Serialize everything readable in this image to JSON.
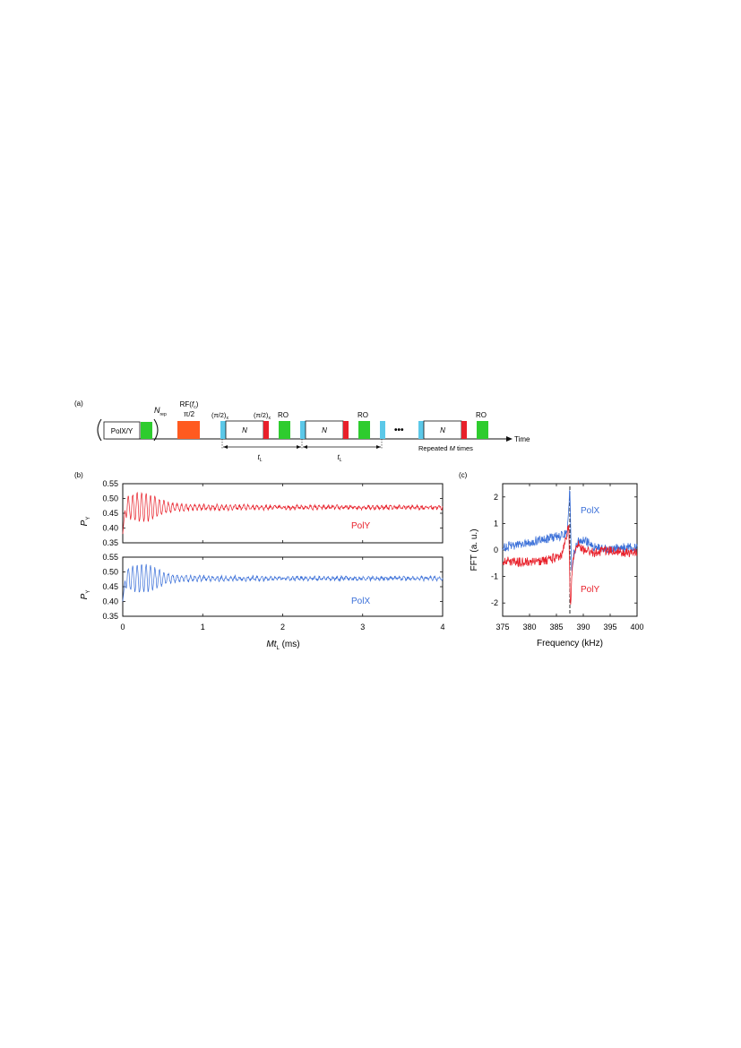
{
  "panel_a": {
    "label": "(a)",
    "pol_box_text": "PolX/Y",
    "nrep_main": "N",
    "nrep_sub": "rep",
    "rf_label_prefix": "RF(",
    "rf_label_f": "f",
    "rf_label_sub": "c",
    "rf_label_suffix": ")",
    "rf_angle": "π/2",
    "pulse_x": "(π/2)",
    "pulse_x_sub": "x",
    "pulse_y": "(π/2)",
    "pulse_y_sub": "x",
    "ro_label": "RO",
    "n_box": "N",
    "tl_main": "t",
    "tl_sub": "L",
    "dots": "•••",
    "repeated_label_pre": "Repeated ",
    "repeated_label_m": "M",
    "repeated_label_post": " times",
    "time_label": "Time",
    "colors": {
      "pol_green": "#2ecc2e",
      "rf_orange": "#ff5a1f",
      "pulse_cyan": "#5bc8e8",
      "pulse_red": "#e8202a",
      "ro_green": "#2ecc2e"
    }
  },
  "panel_b": {
    "label": "(b)",
    "ylabel_main": "P",
    "ylabel_sub": "Y",
    "xlabel_main": "Mt",
    "xlabel_sub": "L",
    "xlabel_unit": " (ms)",
    "yticks": [
      "0.55",
      "0.50",
      "0.45",
      "0.40",
      "0.35"
    ],
    "xticks": [
      "0",
      "1",
      "2",
      "3",
      "4"
    ],
    "top_legend": "PolY",
    "bottom_legend": "PolX"
  },
  "panel_c": {
    "label": "(c)",
    "ylabel": "FFT (a. u.)",
    "xlabel": "Frequency (kHz)",
    "yticks": [
      "2",
      "1",
      "0",
      "-1",
      "-2"
    ],
    "xticks": [
      "375",
      "380",
      "385",
      "390",
      "395",
      "400"
    ],
    "legend_x": "PolX",
    "legend_y": "PolY"
  },
  "chart_data": [
    {
      "type": "line",
      "title": "",
      "xlabel": "Mt_L (ms)",
      "ylabel": "P_Y",
      "xlim": [
        0,
        4
      ],
      "ylim": [
        0.35,
        0.55
      ],
      "series": [
        {
          "name": "PolY",
          "color": "#e8202a",
          "model": "damped oscillation about 0.47",
          "x": [
            0.0,
            0.05,
            0.1,
            0.2,
            0.3,
            0.4,
            0.5,
            0.6,
            0.8,
            1.0,
            1.5,
            2.0,
            2.5,
            3.0,
            3.5,
            4.0
          ],
          "y": [
            0.38,
            0.5,
            0.46,
            0.48,
            0.49,
            0.51,
            0.48,
            0.47,
            0.47,
            0.47,
            0.47,
            0.47,
            0.47,
            0.47,
            0.47,
            0.47
          ]
        }
      ]
    },
    {
      "type": "line",
      "title": "",
      "xlabel": "Mt_L (ms)",
      "ylabel": "P_Y",
      "xlim": [
        0,
        4
      ],
      "ylim": [
        0.35,
        0.55
      ],
      "series": [
        {
          "name": "PolX",
          "color": "#3a6fd8",
          "model": "damped oscillation about 0.48",
          "x": [
            0.0,
            0.05,
            0.1,
            0.2,
            0.3,
            0.4,
            0.5,
            0.6,
            0.8,
            1.0,
            1.5,
            2.0,
            2.5,
            3.0,
            3.5,
            4.0
          ],
          "y": [
            0.4,
            0.47,
            0.46,
            0.5,
            0.51,
            0.5,
            0.49,
            0.48,
            0.48,
            0.48,
            0.48,
            0.48,
            0.48,
            0.48,
            0.48,
            0.47
          ]
        }
      ]
    },
    {
      "type": "line",
      "title": "",
      "xlabel": "Frequency (kHz)",
      "ylabel": "FFT (a. u.)",
      "xlim": [
        375,
        400
      ],
      "ylim": [
        -2.5,
        2.5
      ],
      "vline": 387.5,
      "series": [
        {
          "name": "PolX",
          "color": "#3a6fd8",
          "x": [
            375,
            378,
            381,
            384,
            386,
            387,
            387.5,
            387.8,
            388.2,
            389,
            390,
            392,
            395,
            398,
            400
          ],
          "y": [
            0.1,
            0.2,
            0.35,
            0.45,
            0.55,
            0.6,
            2.3,
            -0.8,
            -0.2,
            0.3,
            0.4,
            0.1,
            0.0,
            0.1,
            0.1
          ]
        },
        {
          "name": "PolY",
          "color": "#e8202a",
          "x": [
            375,
            378,
            381,
            384,
            386,
            387,
            387.3,
            387.6,
            388.0,
            389,
            390,
            392,
            395,
            398,
            400
          ],
          "y": [
            -0.4,
            -0.45,
            -0.45,
            -0.35,
            -0.2,
            0.6,
            0.9,
            -2.3,
            -0.4,
            0.2,
            0.0,
            -0.1,
            0.0,
            -0.1,
            -0.1
          ]
        }
      ]
    }
  ]
}
